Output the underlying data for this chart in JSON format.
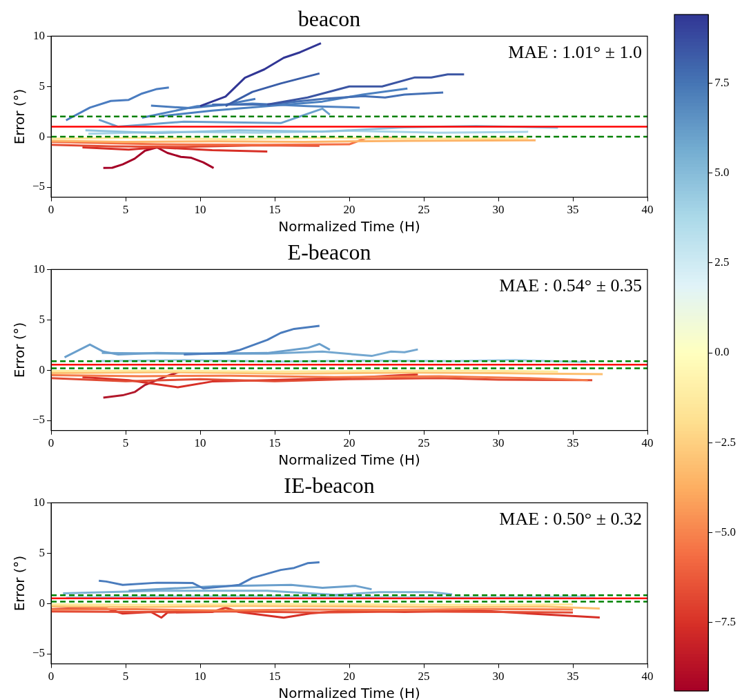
{
  "chart_data": [
    {
      "type": "line",
      "title": "beacon",
      "xlabel": "Normalized Time (H)",
      "ylabel": "Error (°)",
      "xlim": [
        0,
        40
      ],
      "ylim": [
        -6,
        10
      ],
      "xticks": [
        0,
        5,
        10,
        15,
        20,
        25,
        30,
        35,
        40
      ],
      "yticks": [
        -5,
        0,
        5,
        10
      ],
      "grid": false,
      "legend": false,
      "marker": "none",
      "line_style": "solid",
      "clim": [
        -9.4,
        9.4
      ],
      "cticks": [
        {
          "value": -7.5,
          "label": "−7.5"
        },
        {
          "value": -5,
          "label": "−5.0"
        },
        {
          "value": -2.5,
          "label": "−2.5"
        },
        {
          "value": 0,
          "label": "0.0"
        },
        {
          "value": 2.5,
          "label": "2.5"
        },
        {
          "value": 5,
          "label": "5.0"
        },
        {
          "value": 7.5,
          "label": "7.5"
        }
      ],
      "annotations": [
        "MAE : 1.01° ± 1.0"
      ],
      "ref_lines": [
        {
          "axis": "y",
          "value": 1.01,
          "color": "#ff0000",
          "line_style": "solid"
        },
        {
          "axis": "y",
          "value": 2.01,
          "color": "#008000",
          "line_style": "dashed"
        },
        {
          "axis": "y",
          "value": 0.01,
          "color": "#008000",
          "line_style": "dashed"
        }
      ],
      "series": [
        {
          "color": "#313695",
          "x": [
            10.0,
            11.7,
            13.0,
            14.3,
            15.6,
            16.7,
            18.1
          ],
          "values": [
            3.05,
            4.0,
            5.87,
            6.7,
            7.85,
            8.4,
            9.3
          ]
        },
        {
          "color": "#3a5ea8",
          "x": [
            11.7,
            13.5,
            15.4,
            18.0
          ],
          "values": [
            3.05,
            4.46,
            5.3,
            6.3
          ]
        },
        {
          "color": "#3b55a3",
          "x": [
            14.5,
            17.2,
            20.0,
            22.2,
            24.4,
            25.5,
            26.6,
            27.7
          ],
          "values": [
            3.2,
            3.9,
            5.0,
            5.0,
            5.9,
            5.9,
            6.2,
            6.2
          ]
        },
        {
          "color": "#4a7cc0",
          "x": [
            1.0,
            2.6,
            4.0,
            5.2,
            6.1,
            7.1,
            7.9
          ],
          "values": [
            1.64,
            2.9,
            3.56,
            3.67,
            4.3,
            4.75,
            4.9
          ]
        },
        {
          "color": "#4470b5",
          "x": [
            10.8,
            14.5,
            18.2,
            20.9,
            22.4,
            23.7,
            26.3
          ],
          "values": [
            3.2,
            3.2,
            3.76,
            4.04,
            3.9,
            4.2,
            4.4
          ]
        },
        {
          "color": "#4a7cbd",
          "x": [
            6.7,
            9.3,
            11.7,
            13.7
          ],
          "values": [
            3.1,
            2.85,
            3.2,
            3.76
          ]
        },
        {
          "color": "#4b80c0",
          "x": [
            7.4,
            10.8,
            14.5,
            18.2,
            20.9,
            23.9
          ],
          "values": [
            2.06,
            2.6,
            3.05,
            3.5,
            4.2,
            4.8
          ]
        },
        {
          "color": "#5083c2",
          "x": [
            6.1,
            9.8,
            13.5,
            17.2,
            20.7
          ],
          "values": [
            1.9,
            3.05,
            3.3,
            3.05,
            2.9
          ]
        },
        {
          "color": "#6b9fcc",
          "x": [
            3.2,
            4.5,
            8.9,
            15.4,
            18.2,
            18.7
          ],
          "values": [
            1.7,
            1.0,
            1.5,
            1.36,
            2.8,
            2.2
          ]
        },
        {
          "color": "#8fc3dd",
          "x": [
            2.3,
            7.1,
            12.6,
            18.2,
            23.7,
            28.5,
            34.0
          ],
          "values": [
            0.65,
            0.37,
            0.65,
            0.5,
            0.93,
            1.07,
            0.9
          ]
        },
        {
          "color": "#a6d4e6",
          "x": [
            2.5,
            8.0,
            14.0,
            20.0,
            26.0,
            32.0
          ],
          "values": [
            0.3,
            0.5,
            0.4,
            0.6,
            0.4,
            0.5
          ]
        },
        {
          "color": "#fee99a",
          "x": [
            0.0,
            6.0,
            12.0,
            18.0,
            25.0,
            32.0
          ],
          "values": [
            -0.2,
            -0.1,
            -0.25,
            -0.1,
            -0.2,
            -0.15
          ]
        },
        {
          "color": "#fdb366",
          "x": [
            0.0,
            5.0,
            11.0,
            17.0,
            24.0,
            32.5
          ],
          "values": [
            -0.4,
            -0.5,
            -0.45,
            -0.5,
            -0.4,
            -0.35
          ]
        },
        {
          "color": "#f46d43",
          "x": [
            0.0,
            7.1,
            14.0,
            20.0,
            21.1,
            23.0
          ],
          "values": [
            -0.5,
            -0.75,
            -0.8,
            -0.75,
            -0.15,
            -0.1
          ]
        },
        {
          "color": "#e34a33",
          "x": [
            0.0,
            4.0,
            9.0,
            14.0,
            18.0
          ],
          "values": [
            -0.8,
            -0.95,
            -1.0,
            -0.85,
            -0.9
          ]
        },
        {
          "color": "#d73027",
          "x": [
            2.1,
            5.2,
            7.1,
            10.8,
            14.5
          ],
          "values": [
            -1.05,
            -1.27,
            -1.05,
            -1.33,
            -1.47
          ]
        },
        {
          "color": "#a50026",
          "x": [
            3.5,
            4.1,
            4.8,
            5.6,
            6.3,
            7.1,
            7.8,
            8.7,
            9.4,
            10.2,
            10.9
          ],
          "values": [
            -3.1,
            -3.08,
            -2.74,
            -2.18,
            -1.38,
            -1.05,
            -1.6,
            -2.0,
            -2.09,
            -2.54,
            -3.1
          ]
        }
      ]
    },
    {
      "type": "line",
      "title": "E-beacon",
      "xlabel": "Normalized Time (H)",
      "ylabel": "Error (°)",
      "xlim": [
        0,
        40
      ],
      "ylim": [
        -6,
        10
      ],
      "xticks": [
        0,
        5,
        10,
        15,
        20,
        25,
        30,
        35,
        40
      ],
      "yticks": [
        -5,
        0,
        5,
        10
      ],
      "grid": false,
      "legend": false,
      "marker": "none",
      "line_style": "solid",
      "annotations": [
        "MAE : 0.54° ± 0.35"
      ],
      "ref_lines": [
        {
          "axis": "y",
          "value": 0.54,
          "color": "#ff0000",
          "line_style": "solid"
        },
        {
          "axis": "y",
          "value": 0.89,
          "color": "#008000",
          "line_style": "dashed"
        },
        {
          "axis": "y",
          "value": 0.19,
          "color": "#008000",
          "line_style": "dashed"
        }
      ],
      "series": [
        {
          "color": "#4a7cbd",
          "x": [
            8.9,
            11.7,
            12.6,
            14.5,
            15.4,
            16.3,
            18.0
          ],
          "values": [
            1.55,
            1.7,
            1.98,
            3.0,
            3.7,
            4.1,
            4.4
          ]
        },
        {
          "color": "#6a9fcc",
          "x": [
            0.9,
            2.6,
            3.5,
            4.5,
            7.1,
            10.8,
            14.5,
            16.3,
            17.2,
            18.0,
            18.7
          ],
          "values": [
            1.27,
            2.54,
            1.84,
            1.55,
            1.7,
            1.64,
            1.7,
            2.03,
            2.2,
            2.6,
            2.03
          ]
        },
        {
          "color": "#73a7d0",
          "x": [
            3.4,
            8.9,
            14.5,
            18.2,
            21.5,
            22.8,
            23.7,
            24.6
          ],
          "values": [
            1.7,
            1.64,
            1.64,
            1.84,
            1.41,
            1.84,
            1.78,
            2.06
          ]
        },
        {
          "color": "#9fcde3",
          "x": [
            3.0,
            9.0,
            15.0,
            21.0,
            27.0,
            31.0,
            36.0
          ],
          "values": [
            0.9,
            1.0,
            0.85,
            0.95,
            0.9,
            1.0,
            0.8
          ]
        },
        {
          "color": "#fee99a",
          "x": [
            0.0,
            7.0,
            14.0,
            21.0,
            28.0,
            34.0
          ],
          "values": [
            -0.1,
            -0.05,
            -0.15,
            -0.1,
            -0.05,
            -0.15
          ]
        },
        {
          "color": "#fdbf6f",
          "x": [
            0.0,
            8.0,
            16.0,
            24.0,
            30.0,
            37.0
          ],
          "values": [
            -0.3,
            -0.2,
            -0.35,
            -0.25,
            -0.3,
            -0.4
          ]
        },
        {
          "color": "#f57a4a",
          "x": [
            0.0,
            6.0,
            12.0,
            19.0,
            26.0,
            32.0,
            36.0
          ],
          "values": [
            -0.5,
            -0.6,
            -0.55,
            -0.7,
            -0.6,
            -0.8,
            -1.0
          ]
        },
        {
          "color": "#e04b34",
          "x": [
            0.0,
            5.0,
            10.0,
            15.0,
            20.0,
            26.0,
            30.0,
            36.3
          ],
          "values": [
            -0.8,
            -1.1,
            -0.9,
            -1.1,
            -0.9,
            -0.8,
            -0.95,
            -1.0
          ]
        },
        {
          "color": "#d73027",
          "x": [
            2.1,
            5.2,
            8.5,
            10.8,
            14.5,
            18.2,
            20.0,
            24.6
          ],
          "values": [
            -0.7,
            -1.0,
            -1.7,
            -1.13,
            -1.0,
            -0.85,
            -0.76,
            -0.42
          ]
        },
        {
          "color": "#b2182b",
          "x": [
            3.5,
            4.8,
            5.6,
            6.3,
            7.8,
            8.7
          ],
          "values": [
            -2.74,
            -2.5,
            -2.18,
            -1.47,
            -0.56,
            -0.14
          ]
        }
      ]
    },
    {
      "type": "line",
      "title": "IE-beacon",
      "xlabel": "Normalized Time (H)",
      "ylabel": "Error (°)",
      "xlim": [
        0,
        40
      ],
      "ylim": [
        -6,
        10
      ],
      "xticks": [
        0,
        5,
        10,
        15,
        20,
        25,
        30,
        35,
        40
      ],
      "yticks": [
        -5,
        0,
        5,
        10
      ],
      "grid": false,
      "legend": false,
      "marker": "none",
      "line_style": "solid",
      "annotations": [
        "MAE : 0.50° ± 0.32"
      ],
      "ref_lines": [
        {
          "axis": "y",
          "value": 0.5,
          "color": "#ff0000",
          "line_style": "solid"
        },
        {
          "axis": "y",
          "value": 0.82,
          "color": "#008000",
          "line_style": "dashed"
        },
        {
          "axis": "y",
          "value": 0.18,
          "color": "#008000",
          "line_style": "dashed"
        }
      ],
      "series": [
        {
          "color": "#4a7cbd",
          "x": [
            3.2,
            3.7,
            4.8,
            7.1,
            9.5,
            10.2,
            11.7,
            12.6,
            13.5,
            15.4,
            16.3,
            17.2,
            18.0
          ],
          "values": [
            2.26,
            2.18,
            1.84,
            2.06,
            2.03,
            1.5,
            1.7,
            1.84,
            2.54,
            3.33,
            3.53,
            4.0,
            4.1
          ]
        },
        {
          "color": "#6a9fcc",
          "x": [
            5.2,
            10.8,
            16.1,
            18.2,
            20.4,
            21.5
          ],
          "values": [
            1.27,
            1.7,
            1.84,
            1.55,
            1.75,
            1.41
          ]
        },
        {
          "color": "#7eb3d6",
          "x": [
            0.8,
            7.1,
            14.5,
            19.1,
            22.0,
            25.5,
            26.9
          ],
          "values": [
            1.0,
            1.27,
            1.27,
            0.85,
            1.13,
            1.13,
            0.9
          ]
        },
        {
          "color": "#a6d4e6",
          "x": [
            1.0,
            8.0,
            15.0,
            22.0,
            29.0,
            36.5
          ],
          "values": [
            0.6,
            0.7,
            0.7,
            0.65,
            0.6,
            0.7
          ]
        },
        {
          "color": "#fee99a",
          "x": [
            0.0,
            7.0,
            14.0,
            21.0,
            28.0,
            35.0
          ],
          "values": [
            -0.1,
            -0.15,
            -0.05,
            -0.1,
            -0.15,
            -0.1
          ]
        },
        {
          "color": "#fdbf6f",
          "x": [
            0.0,
            6.0,
            13.0,
            20.0,
            27.0,
            33.0,
            36.8
          ],
          "values": [
            -0.3,
            -0.35,
            -0.25,
            -0.3,
            -0.35,
            -0.3,
            -0.5
          ]
        },
        {
          "color": "#f57a4a",
          "x": [
            0.0,
            5.0,
            11.0,
            17.0,
            23.0,
            29.0,
            35.0
          ],
          "values": [
            -0.6,
            -0.55,
            -0.7,
            -0.6,
            -0.65,
            -0.55,
            -0.6
          ]
        },
        {
          "color": "#e34a33",
          "x": [
            0.0,
            6.0,
            12.0,
            18.0,
            24.0,
            30.0,
            35.0
          ],
          "values": [
            -0.8,
            -0.85,
            -0.8,
            -0.9,
            -0.8,
            -0.85,
            -0.9
          ]
        },
        {
          "color": "#d73027",
          "x": [
            0.0,
            3.4,
            4.8,
            6.7,
            7.4,
            7.8,
            10.8,
            11.7,
            12.6,
            15.6,
            17.4,
            20.0,
            23.7,
            28.5,
            36.8
          ],
          "values": [
            -0.57,
            -0.37,
            -1.0,
            -0.85,
            -1.41,
            -0.9,
            -0.85,
            -0.42,
            -0.85,
            -1.41,
            -0.99,
            -0.7,
            -0.85,
            -0.7,
            -1.4
          ]
        }
      ]
    }
  ]
}
